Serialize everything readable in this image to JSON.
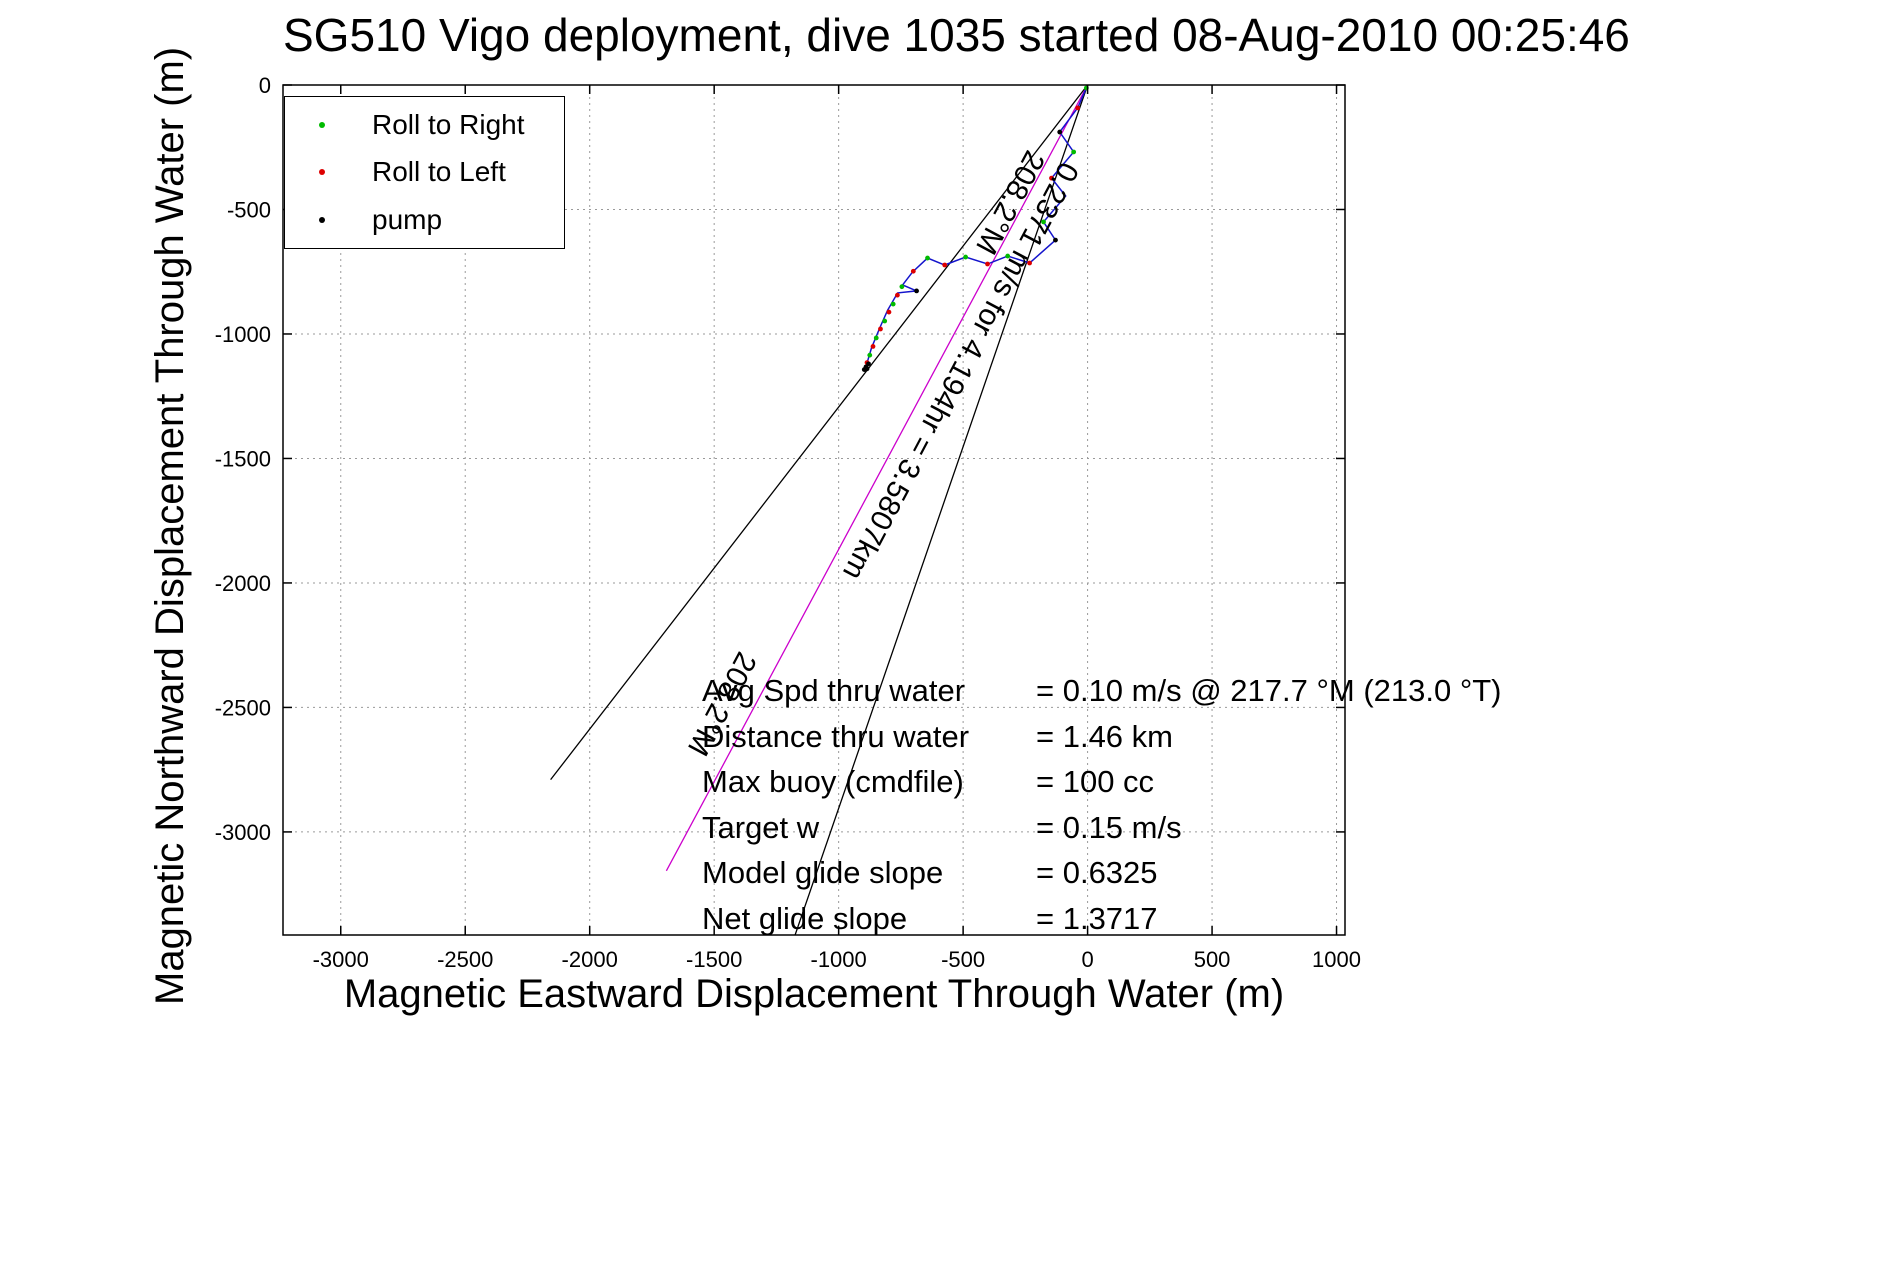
{
  "chart_data": {
    "type": "line",
    "title": "SG510 Vigo deployment, dive 1035 started 08-Aug-2010 00:25:46",
    "xlabel": "Magnetic Eastward Displacement Through Water (m)",
    "ylabel": "Magnetic Northward Displacement Through Water (m)",
    "xlim": [
      -3232,
      1034
    ],
    "ylim": [
      -3414,
      0
    ],
    "xticks": [
      -3000,
      -2500,
      -2000,
      -1500,
      -1000,
      -500,
      0,
      500,
      1000
    ],
    "yticks": [
      0,
      -500,
      -1000,
      -1500,
      -2000,
      -2500,
      -3000
    ],
    "grid": true,
    "colors": {
      "grid": "#9a9a9a",
      "axis": "#000000",
      "track": "#1414cc"
    },
    "legend": {
      "position": "northwest",
      "entries": [
        {
          "label": "Roll to Right",
          "color": "#00bb00"
        },
        {
          "label": "Roll to Left",
          "color": "#dd0000"
        },
        {
          "label": "pump",
          "color": "#000000"
        }
      ]
    },
    "track": {
      "name": "dive-track-through-water",
      "color": "#1414cc",
      "points": [
        [
          0,
          0
        ],
        [
          -15,
          -35
        ],
        [
          -40,
          -92
        ],
        [
          -112,
          -189
        ],
        [
          -56,
          -269
        ],
        [
          -145,
          -374
        ],
        [
          -88,
          -446
        ],
        [
          -177,
          -550
        ],
        [
          -129,
          -623
        ],
        [
          -233,
          -715
        ],
        [
          -321,
          -687
        ],
        [
          -402,
          -719
        ],
        [
          -490,
          -691
        ],
        [
          -574,
          -723
        ],
        [
          -643,
          -695
        ],
        [
          -703,
          -751
        ],
        [
          -743,
          -803
        ],
        [
          -687,
          -827
        ],
        [
          -763,
          -835
        ],
        [
          -803,
          -904
        ],
        [
          -835,
          -976
        ],
        [
          -868,
          -1056
        ],
        [
          -892,
          -1137
        ]
      ]
    },
    "markers": [
      {
        "name": "roll-right",
        "label": "Roll to Right",
        "color": "#00bb00",
        "points": [
          [
            -5,
            -12
          ],
          [
            -56,
            -269
          ],
          [
            -177,
            -550
          ],
          [
            -321,
            -687
          ],
          [
            -490,
            -691
          ],
          [
            -643,
            -695
          ],
          [
            -746,
            -810
          ],
          [
            -781,
            -880
          ],
          [
            -815,
            -948
          ],
          [
            -849,
            -1016
          ],
          [
            -875,
            -1085
          ]
        ]
      },
      {
        "name": "roll-left",
        "label": "Roll to Left",
        "color": "#dd0000",
        "points": [
          [
            -40,
            -92
          ],
          [
            -145,
            -374
          ],
          [
            -233,
            -715
          ],
          [
            -402,
            -719
          ],
          [
            -574,
            -723
          ],
          [
            -700,
            -748
          ],
          [
            -764,
            -844
          ],
          [
            -798,
            -912
          ],
          [
            -832,
            -980
          ],
          [
            -862,
            -1050
          ],
          [
            -886,
            -1115
          ]
        ]
      },
      {
        "name": "pump",
        "label": "pump",
        "color": "#000000",
        "points": [
          [
            -112,
            -189
          ],
          [
            -129,
            -623
          ],
          [
            -687,
            -827
          ],
          [
            -880,
            -1120
          ],
          [
            -890,
            -1132
          ],
          [
            -897,
            -1143
          ],
          [
            -886,
            -1140
          ]
        ]
      }
    ],
    "reference_lines": [
      {
        "name": "avg-course-line",
        "color": "#000000",
        "from": [
          0,
          0
        ],
        "to": [
          -2157,
          -2790
        ]
      },
      {
        "name": "net-glide-line",
        "color": "#000000",
        "from": [
          0,
          0
        ],
        "to": [
          -1175,
          -3414
        ]
      },
      {
        "name": "dead-reckoned-displacement-line",
        "color": "#cc00cc",
        "from": [
          0,
          0
        ],
        "to": [
          -1692,
          -3156
        ]
      }
    ],
    "line_labels": [
      {
        "text": "208.2°M",
        "at": [
          -240,
          -255
        ],
        "rotation": 118
      },
      {
        "text": "0.2371 m/s for 4.194hr = 3.5807km",
        "at": [
          -104,
          -301
        ],
        "rotation": 118
      },
      {
        "text": "208.2°M",
        "at": [
          -1398,
          -2269
        ],
        "rotation": 118
      }
    ],
    "annotations": [
      {
        "label": "Avg Spd thru water",
        "value": "=  0.10 m/s @ 217.7 °M (213.0 °T)"
      },
      {
        "label": "Distance thru water",
        "value": "=  1.46 km"
      },
      {
        "label": "Max buoy (cmdfile)",
        "value": "= 100 cc"
      },
      {
        "label": "Target w",
        "value": "= 0.15 m/s"
      },
      {
        "label": "Model glide slope",
        "value": "= 0.6325"
      },
      {
        "label": "Net glide slope",
        "value": "= 1.3717"
      }
    ]
  }
}
